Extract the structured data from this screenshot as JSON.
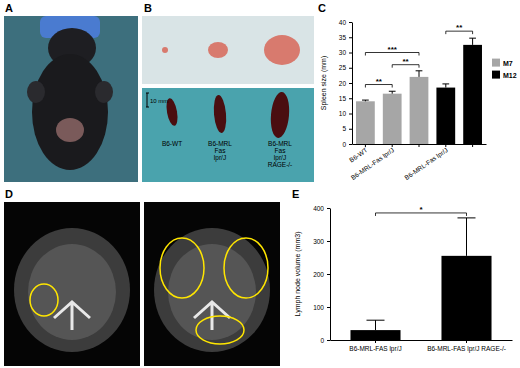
{
  "figure": {
    "panel_labels": [
      "A",
      "B",
      "C",
      "D",
      "E"
    ],
    "photo_labels": [
      "B6-WT",
      "B6-MRL Fas lpr/J",
      "B6-MRL Fas lpr/J RAGE-/-"
    ],
    "scale_bar": "10 mm"
  },
  "chart_data": [
    {
      "type": "bar",
      "y_label": "Spleen size (mm)",
      "categories": [
        "B6-WT",
        "B6-MRL-Fas lpr/J",
        null,
        "B6-MRL-Fas lpr/J",
        null
      ],
      "series": [
        {
          "name": "M7",
          "color": "#a6a6a6",
          "values": [
            14,
            16.5,
            22,
            null,
            null
          ],
          "errors": [
            0.4,
            0.8,
            2,
            null,
            null
          ]
        },
        {
          "name": "M12",
          "color": "#000000",
          "values": [
            null,
            null,
            null,
            18.5,
            32.5
          ],
          "errors": [
            null,
            null,
            null,
            1.2,
            2.2
          ]
        }
      ],
      "ylim": [
        0,
        40
      ],
      "yticks": [
        0,
        5,
        10,
        15,
        20,
        25,
        30,
        35,
        40
      ],
      "legend": "right",
      "annotations": [
        {
          "text": "**",
          "from": 0,
          "to": 1,
          "y": 19.5
        },
        {
          "text": "***",
          "from": 0,
          "to": 2,
          "y": 30
        },
        {
          "text": "**",
          "from": 1,
          "to": 2,
          "y": 26
        },
        {
          "text": "**",
          "from": 3,
          "to": 4,
          "y": 37
        }
      ]
    },
    {
      "type": "bar",
      "y_label": "Lymph node volume (mm3)",
      "categories": [
        "B6-MRL-FAS lpr/J",
        "B6-MRL-FAS lpr/J RAGE-/-"
      ],
      "values": [
        30,
        255
      ],
      "errors": [
        30,
        115
      ],
      "color": "#000000",
      "ylim": [
        0,
        400
      ],
      "yticks": [
        0,
        100,
        200,
        300,
        400
      ],
      "annotations": [
        {
          "text": "*",
          "from": 0,
          "to": 1,
          "y": 385
        }
      ]
    }
  ]
}
